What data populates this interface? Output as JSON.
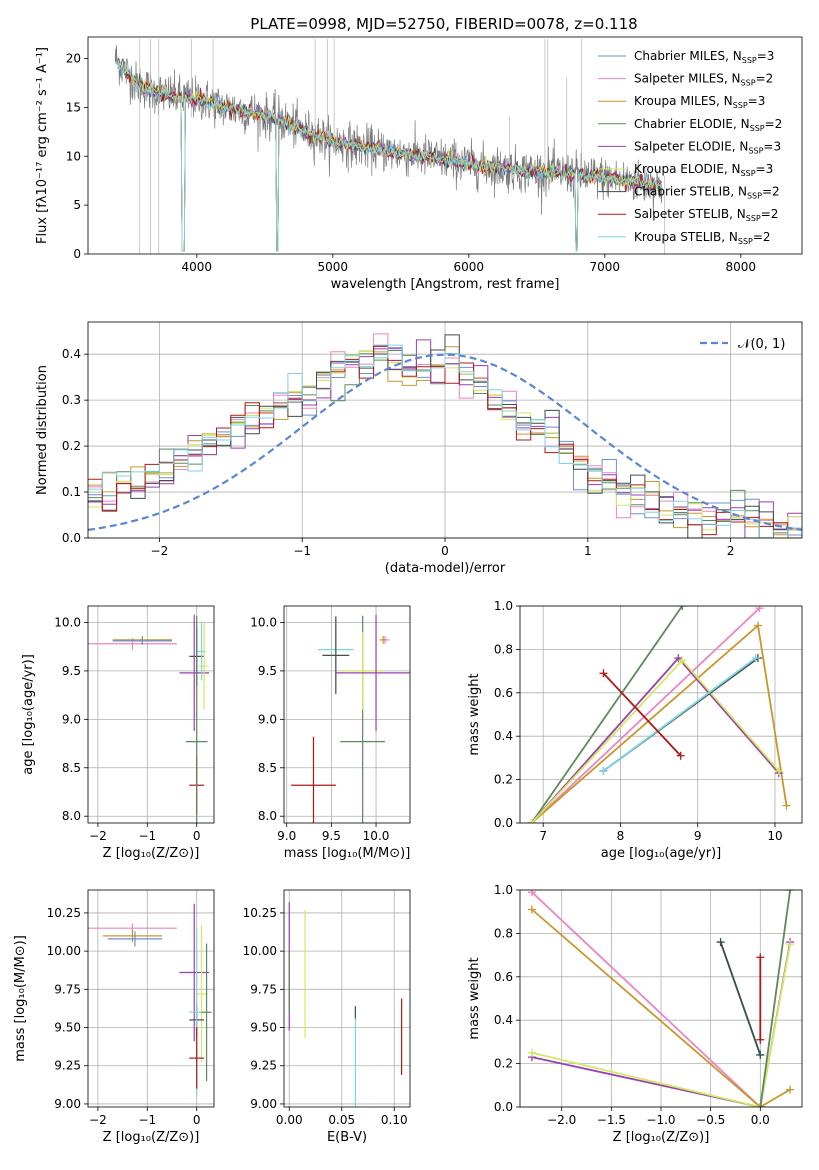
{
  "title": "PLATE=0998, MJD=52750, FIBERID=0078, z=0.118",
  "colors": {
    "Chabrier MILES": "#6f8fd0",
    "Salpeter MILES": "#e887c4",
    "Kroupa MILES": "#c9962c",
    "Chabrier ELODIE": "#5c8a5c",
    "Salpeter ELODIE": "#9a3fb0",
    "Kroupa ELODIE": "#d4e860",
    "Chabrier STELIB": "#3d4f4f",
    "Salpeter STELIB": "#b01818",
    "Kroupa STELIB": "#7fd3e0",
    "data": "#7a7a7a",
    "normal": "#5b86d6",
    "orange_dup": "#e07b2a"
  },
  "chart_data": [
    {
      "id": "spectrum",
      "type": "line",
      "title": "PLATE=0998, MJD=52750, FIBERID=0078, z=0.118",
      "xlabel": "wavelength [Angstrom, rest frame]",
      "ylabel": "Flux [fλ10⁻¹⁷ erg cm⁻² s⁻¹ A⁻¹]",
      "xlim": [
        3200,
        8450
      ],
      "ylim": [
        0,
        22.2
      ],
      "xticks": [
        4000,
        5000,
        6000,
        7000,
        8000
      ],
      "yticks": [
        0,
        5,
        10,
        15,
        20
      ],
      "legend_position": "top-right",
      "legend": [
        {
          "base": "Chabrier MILES, N",
          "sub": "SSP",
          "tail": "=3"
        },
        {
          "base": "Salpeter MILES, N",
          "sub": "SSP",
          "tail": "=2"
        },
        {
          "base": "Kroupa MILES, N",
          "sub": "SSP",
          "tail": "=3"
        },
        {
          "base": "Chabrier ELODIE, N",
          "sub": "SSP",
          "tail": "=2"
        },
        {
          "base": "Salpeter ELODIE, N",
          "sub": "SSP",
          "tail": "=3"
        },
        {
          "base": "Kroupa ELODIE, N",
          "sub": "SSP",
          "tail": "=3"
        },
        {
          "base": "Chabrier STELIB, N",
          "sub": "SSP",
          "tail": "=2"
        },
        {
          "base": "Salpeter STELIB, N",
          "sub": "SSP",
          "tail": "=2"
        },
        {
          "base": "Kroupa STELIB, N",
          "sub": "SSP",
          "tail": "=2"
        }
      ],
      "model_continuum": {
        "x": [
          3400,
          3550,
          3700,
          3900,
          4050,
          4200,
          4400,
          4600,
          4800,
          5000,
          5200,
          5500,
          5800,
          6100,
          6400,
          6700,
          7000,
          7200,
          7400
        ],
        "y": [
          20.0,
          17.5,
          16.5,
          16.0,
          15.8,
          15.0,
          14.5,
          13.8,
          12.5,
          11.5,
          11.0,
          10.3,
          9.7,
          9.0,
          8.5,
          8.3,
          7.8,
          7.4,
          7.0
        ]
      }
    },
    {
      "id": "residuals",
      "type": "histogram",
      "xlabel": "(data-model)/error",
      "ylabel": "Normed distribution",
      "xlim": [
        -2.5,
        2.5
      ],
      "ylim": [
        0,
        0.47
      ],
      "xticks": [
        -2,
        -1,
        0,
        1,
        2
      ],
      "yticks": [
        0.0,
        0.1,
        0.2,
        0.3,
        0.4
      ],
      "legend_position": "top-right",
      "normal_label": "𝒩(0, 1)",
      "bins_start": -2.5,
      "bin_width": 0.1,
      "envelope": [
        0.09,
        0.1,
        0.11,
        0.12,
        0.14,
        0.15,
        0.17,
        0.19,
        0.21,
        0.22,
        0.24,
        0.25,
        0.27,
        0.29,
        0.31,
        0.33,
        0.35,
        0.37,
        0.38,
        0.39,
        0.4,
        0.38,
        0.36,
        0.36,
        0.37,
        0.38,
        0.36,
        0.33,
        0.3,
        0.28,
        0.26,
        0.24,
        0.21,
        0.19,
        0.16,
        0.14,
        0.12,
        0.1,
        0.09,
        0.08,
        0.07,
        0.06,
        0.05,
        0.05,
        0.04,
        0.04,
        0.03,
        0.03,
        0.02,
        0.02
      ]
    },
    {
      "id": "age-vs-Z",
      "type": "scatter",
      "xlabel": "Z [log₁₀(Z/Z⊙)]",
      "ylabel": "age  [log₁₀(age/yr)]",
      "xlim": [
        -2.2,
        0.35
      ],
      "ylim": [
        7.93,
        10.17
      ],
      "xticks": [
        -2,
        -1,
        0
      ],
      "yticks": [
        8.0,
        8.5,
        9.0,
        9.5,
        10.0
      ],
      "points": [
        {
          "model": "Salpeter MILES",
          "x": -1.3,
          "y": 9.78,
          "xerr": 0.9,
          "yerr": 0.06
        },
        {
          "model": "Kroupa MILES",
          "x": -1.1,
          "y": 9.82,
          "xerr": 0.6,
          "yerr": 0.04
        },
        {
          "model": "Chabrier MILES",
          "x": -1.1,
          "y": 9.81,
          "xerr": 0.6,
          "yerr": 0.04
        },
        {
          "model": "Salpeter STELIB",
          "x": 0.0,
          "y": 8.32,
          "xerr": 0.15,
          "yerr": 0.3
        },
        {
          "model": "Chabrier STELIB",
          "x": 0.0,
          "y": 9.65,
          "xerr": 0.15,
          "yerr": 0.3
        },
        {
          "model": "Salpeter ELODIE",
          "x": -0.05,
          "y": 9.48,
          "xerr": 0.3,
          "yerr": 0.6
        },
        {
          "model": "Kroupa ELODIE",
          "x": 0.15,
          "y": 9.55,
          "xerr": 0.1,
          "yerr": 0.45
        },
        {
          "model": "Kroupa STELIB",
          "x": 0.1,
          "y": 9.7,
          "xerr": 0.08,
          "yerr": 0.3
        },
        {
          "model": "Chabrier ELODIE",
          "x": 0.0,
          "y": 8.77,
          "xerr": 0.22,
          "yerr": 1.3
        }
      ]
    },
    {
      "id": "age-vs-mass",
      "type": "scatter",
      "xlabel": "mass [log₁₀(M/M⊙)]",
      "ylabel": "",
      "xlim": [
        8.97,
        10.38
      ],
      "ylim": [
        7.93,
        10.17
      ],
      "xticks": [
        9.0,
        9.5,
        10.0
      ],
      "yticks": [
        8.0,
        8.5,
        9.0,
        9.5,
        10.0
      ],
      "points": [
        {
          "model": "Salpeter STELIB",
          "x": 9.3,
          "y": 8.32,
          "xerr": 0.25,
          "yerr": 0.5
        },
        {
          "model": "Kroupa STELIB",
          "x": 9.55,
          "y": 9.72,
          "xerr": 0.2,
          "yerr": 0.35
        },
        {
          "model": "Chabrier STELIB",
          "x": 9.55,
          "y": 9.66,
          "xerr": 0.15,
          "yerr": 0.4
        },
        {
          "model": "Chabrier ELODIE",
          "x": 9.85,
          "y": 8.77,
          "xerr": 0.25,
          "yerr": 1.3
        },
        {
          "model": "Kroupa ELODIE",
          "x": 9.85,
          "y": 9.5,
          "xerr": 0.25,
          "yerr": 0.4
        },
        {
          "model": "Salpeter ELODIE",
          "x": 10.0,
          "y": 9.48,
          "xerr": 0.45,
          "yerr": 0.6
        },
        {
          "model": "Salpeter MILES",
          "x": 10.1,
          "y": 9.82,
          "xerr": 0.05,
          "yerr": 0.04
        },
        {
          "model": "Kroupa MILES",
          "x": 10.08,
          "y": 9.82,
          "xerr": 0.04,
          "yerr": 0.04
        }
      ]
    },
    {
      "id": "weight-vs-age",
      "type": "line",
      "xlabel": "age  [log₁₀(age/yr)]",
      "ylabel": "mass weight",
      "xlim": [
        6.7,
        10.35
      ],
      "ylim": [
        0,
        1.0
      ],
      "xticks": [
        7,
        8,
        9,
        10
      ],
      "yticks": [
        0.0,
        0.2,
        0.4,
        0.6,
        0.8,
        1.0
      ],
      "series": [
        {
          "model": "Chabrier ELODIE",
          "x": [
            6.85,
            8.8
          ],
          "y": [
            0.0,
            1.0
          ]
        },
        {
          "model": "Salpeter MILES",
          "x": [
            6.85,
            9.8
          ],
          "y": [
            0.0,
            0.99
          ]
        },
        {
          "model": "Kroupa MILES",
          "x": [
            6.85,
            9.78,
            10.15
          ],
          "y": [
            0.0,
            0.91,
            0.08
          ]
        },
        {
          "model": "Salpeter ELODIE",
          "x": [
            6.85,
            8.75,
            10.05
          ],
          "y": [
            0.0,
            0.76,
            0.23
          ]
        },
        {
          "model": "Kroupa ELODIE",
          "x": [
            6.85,
            8.8,
            10.05
          ],
          "y": [
            0.0,
            0.75,
            0.24
          ]
        },
        {
          "model": "Chabrier STELIB",
          "x": [
            7.78,
            9.78
          ],
          "y": [
            0.24,
            0.76
          ]
        },
        {
          "model": "Kroupa STELIB",
          "x": [
            7.78,
            9.75
          ],
          "y": [
            0.24,
            0.76
          ]
        },
        {
          "model": "Salpeter STELIB",
          "x": [
            7.78,
            8.78
          ],
          "y": [
            0.69,
            0.31
          ]
        }
      ]
    },
    {
      "id": "mass-vs-Z",
      "type": "scatter",
      "xlabel": "Z [log₁₀(Z/Z⊙)]",
      "ylabel": "mass [log₁₀(M/M⊙)]",
      "xlim": [
        -2.2,
        0.35
      ],
      "ylim": [
        8.98,
        10.4
      ],
      "xticks": [
        -2,
        -1,
        0
      ],
      "yticks": [
        9.0,
        9.25,
        9.5,
        9.75,
        10.0,
        10.25
      ],
      "points": [
        {
          "model": "Salpeter MILES",
          "x": -1.3,
          "y": 10.15,
          "xerr": 0.9,
          "yerr": 0.03
        },
        {
          "model": "Kroupa MILES",
          "x": -1.3,
          "y": 10.1,
          "xerr": 0.6,
          "yerr": 0.04
        },
        {
          "model": "Chabrier MILES",
          "x": -1.25,
          "y": 10.08,
          "xerr": 0.55,
          "yerr": 0.05
        },
        {
          "model": "Salpeter ELODIE",
          "x": -0.05,
          "y": 9.86,
          "xerr": 0.3,
          "yerr": 0.45
        },
        {
          "model": "Kroupa ELODIE",
          "x": 0.1,
          "y": 9.72,
          "xerr": 0.1,
          "yerr": 0.45
        },
        {
          "model": "Chabrier STELIB",
          "x": 0.0,
          "y": 9.55,
          "xerr": 0.15,
          "yerr": 0.1
        },
        {
          "model": "Kroupa STELIB",
          "x": 0.0,
          "y": 9.6,
          "xerr": 0.15,
          "yerr": 0.55
        },
        {
          "model": "Salpeter STELIB",
          "x": 0.0,
          "y": 9.3,
          "xerr": 0.15,
          "yerr": 0.2
        },
        {
          "model": "Chabrier ELODIE",
          "x": 0.2,
          "y": 9.6,
          "xerr": 0.1,
          "yerr": 0.45
        }
      ]
    },
    {
      "id": "mass-vs-EBV",
      "type": "scatter",
      "xlabel": "E(B-V)",
      "ylabel": "",
      "xlim": [
        -0.005,
        0.115
      ],
      "ylim": [
        8.98,
        10.4
      ],
      "xticks": [
        0.0,
        0.05,
        0.1
      ],
      "yticks": [
        9.0,
        9.25,
        9.5,
        9.75,
        10.0,
        10.25
      ],
      "points": [
        {
          "model": "Salpeter ELODIE",
          "x": 0.0,
          "y": 9.9,
          "yerr": 0.42
        },
        {
          "model": "Chabrier ELODIE",
          "x": 0.0,
          "y": 9.8,
          "yerr": 0.2
        },
        {
          "model": "Kroupa ELODIE",
          "x": 0.015,
          "y": 9.85,
          "yerr": 0.42
        },
        {
          "model": "Kroupa STELIB",
          "x": 0.063,
          "y": 9.3,
          "yerr": 0.32
        },
        {
          "model": "Chabrier STELIB",
          "x": 0.063,
          "y": 9.6,
          "yerr": 0.04
        },
        {
          "model": "Salpeter STELIB",
          "x": 0.107,
          "y": 9.44,
          "yerr": 0.25
        }
      ]
    },
    {
      "id": "weight-vs-Z",
      "type": "line",
      "xlabel": "Z [log₁₀(Z/Z⊙)]",
      "ylabel": "mass weight",
      "xlim": [
        -2.42,
        0.42
      ],
      "ylim": [
        0,
        1.0
      ],
      "xticks": [
        -2.0,
        -1.5,
        -1.0,
        -0.5,
        0.0
      ],
      "yticks": [
        0.0,
        0.2,
        0.4,
        0.6,
        0.8,
        1.0
      ],
      "series": [
        {
          "model": "Salpeter MILES",
          "x": [
            -2.3,
            0.0
          ],
          "y": [
            0.99,
            0.0
          ]
        },
        {
          "model": "Kroupa MILES",
          "x": [
            -2.3,
            0.0,
            0.3
          ],
          "y": [
            0.91,
            0.0,
            0.08
          ]
        },
        {
          "model": "Salpeter ELODIE",
          "x": [
            -2.3,
            0.0,
            0.3
          ],
          "y": [
            0.23,
            0.0,
            0.76
          ]
        },
        {
          "model": "Kroupa ELODIE",
          "x": [
            -2.3,
            0.0,
            0.3
          ],
          "y": [
            0.25,
            0.0,
            0.75
          ]
        },
        {
          "model": "Chabrier ELODIE",
          "x": [
            0.0,
            0.3
          ],
          "y": [
            0.0,
            1.0
          ]
        },
        {
          "model": "Kroupa STELIB",
          "x": [
            -0.4,
            0.0
          ],
          "y": [
            0.76,
            0.24
          ]
        },
        {
          "model": "Chabrier STELIB",
          "x": [
            -0.4,
            0.0
          ],
          "y": [
            0.76,
            0.24
          ]
        },
        {
          "model": "Salpeter STELIB",
          "x": [
            0.0,
            0.0
          ],
          "y": [
            0.69,
            0.31
          ]
        }
      ]
    }
  ]
}
